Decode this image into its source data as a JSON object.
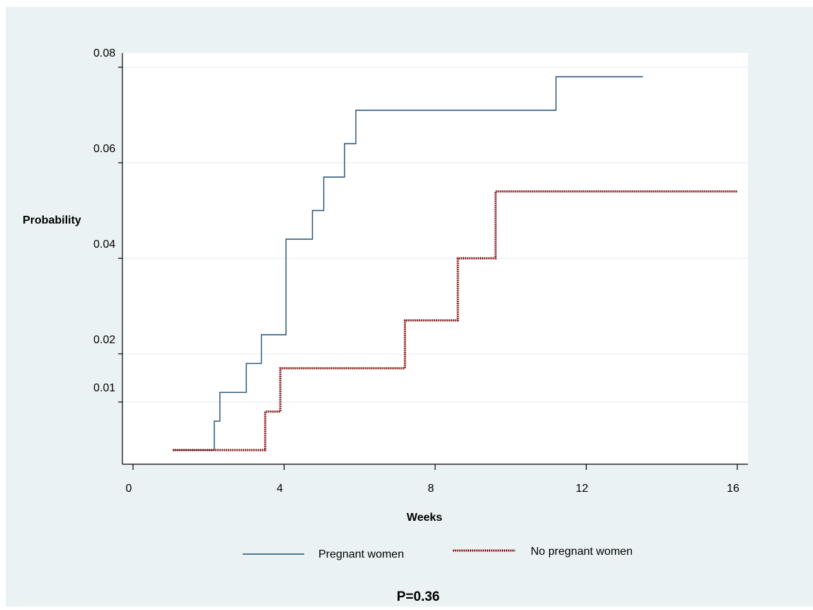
{
  "chart_data": {
    "type": "line",
    "step": true,
    "xlabel": "Weeks",
    "ylabel": "Probability",
    "xlim": [
      0,
      16
    ],
    "ylim": [
      0,
      0.08
    ],
    "x_ticks": [
      0,
      4,
      8,
      12,
      16
    ],
    "x_tick_labels": [
      "0",
      "4",
      "8",
      "12",
      "16"
    ],
    "y_ticks": [
      0.01,
      0.02,
      0.04,
      0.06,
      0.08
    ],
    "y_tick_labels": [
      "0.01",
      "0.02",
      "0.04",
      "0.06",
      "0.08"
    ],
    "grid": "horizontal",
    "legend_position": "bottom",
    "annotation": "P=0.36",
    "series": [
      {
        "name": "Pregnant women",
        "color": "#1f4e79",
        "style": "solid",
        "x": [
          1.05,
          2.15,
          2.3,
          3.0,
          3.4,
          4.05,
          4.75,
          5.05,
          5.6,
          5.9,
          11.2,
          13.5
        ],
        "y": [
          0.0,
          0.006,
          0.012,
          0.018,
          0.024,
          0.044,
          0.05,
          0.057,
          0.064,
          0.071,
          0.078,
          0.078
        ]
      },
      {
        "name": "No pregnant women",
        "color": "#8b1a1a",
        "style": "dotted",
        "x": [
          1.05,
          3.5,
          3.9,
          7.2,
          8.6,
          9.6,
          16.0
        ],
        "y": [
          0.0,
          0.008,
          0.017,
          0.027,
          0.04,
          0.054,
          0.054
        ]
      }
    ]
  }
}
